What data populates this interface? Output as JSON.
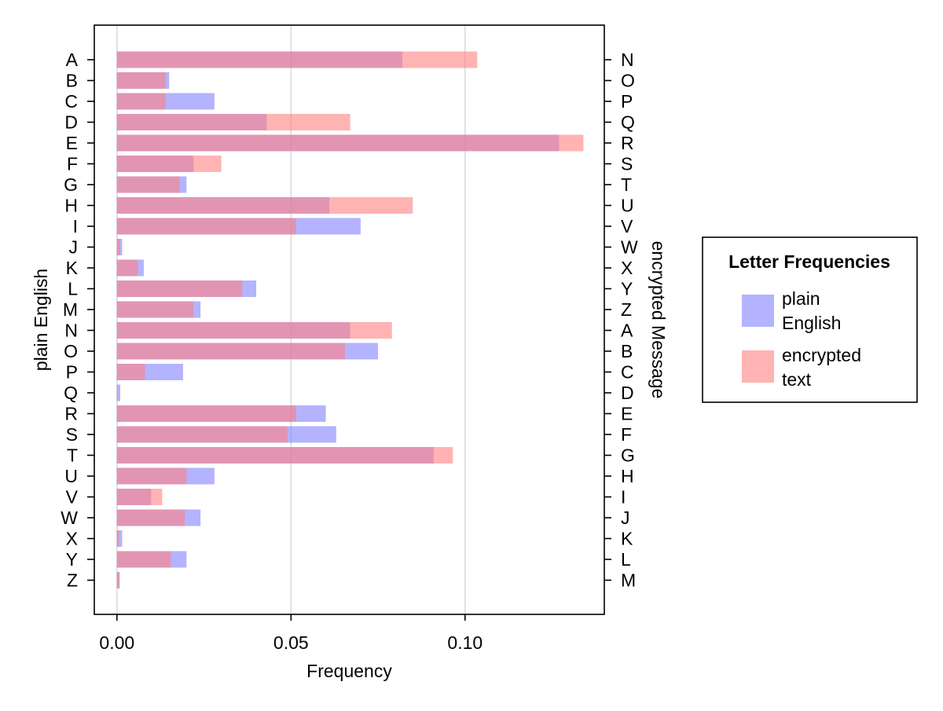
{
  "chart_data": {
    "type": "bar",
    "orientation": "horizontal",
    "title": "",
    "xlabel": "Frequency",
    "ylabel_left": "plain English",
    "ylabel_right": "encrypted Message",
    "xlim": [
      -0.0065,
      0.14
    ],
    "xticks": [
      0.0,
      0.05,
      0.1
    ],
    "xtick_labels": [
      "0.00",
      "0.05",
      "0.10"
    ],
    "grid": "vertical",
    "categories_left": [
      "A",
      "B",
      "C",
      "D",
      "E",
      "F",
      "G",
      "H",
      "I",
      "J",
      "K",
      "L",
      "M",
      "N",
      "O",
      "P",
      "Q",
      "R",
      "S",
      "T",
      "U",
      "V",
      "W",
      "X",
      "Y",
      "Z"
    ],
    "categories_right": [
      "N",
      "O",
      "P",
      "Q",
      "R",
      "S",
      "T",
      "U",
      "V",
      "W",
      "X",
      "Y",
      "Z",
      "A",
      "B",
      "C",
      "D",
      "E",
      "F",
      "G",
      "H",
      "I",
      "J",
      "K",
      "L",
      "M"
    ],
    "series": [
      {
        "name": "plain English",
        "legend_label_lines": [
          "plain",
          "English"
        ],
        "color": "#8080ff",
        "values": [
          0.082,
          0.015,
          0.028,
          0.043,
          0.127,
          0.022,
          0.02,
          0.061,
          0.07,
          0.0015,
          0.0077,
          0.04,
          0.024,
          0.067,
          0.075,
          0.019,
          0.00095,
          0.06,
          0.063,
          0.091,
          0.028,
          0.0098,
          0.024,
          0.0015,
          0.02,
          0.00074
        ]
      },
      {
        "name": "encrypted text",
        "legend_label_lines": [
          "encrypted",
          "text"
        ],
        "color": "#ff8080",
        "values": [
          0.1035,
          0.014,
          0.014,
          0.067,
          0.134,
          0.03,
          0.018,
          0.085,
          0.0515,
          0.0009,
          0.006,
          0.036,
          0.022,
          0.079,
          0.0655,
          0.008,
          0.0001,
          0.0515,
          0.049,
          0.0965,
          0.02,
          0.013,
          0.0195,
          0.0006,
          0.0155,
          0.0008
        ]
      }
    ],
    "legend": {
      "title": "Letter Frequencies",
      "placement": "right"
    }
  }
}
